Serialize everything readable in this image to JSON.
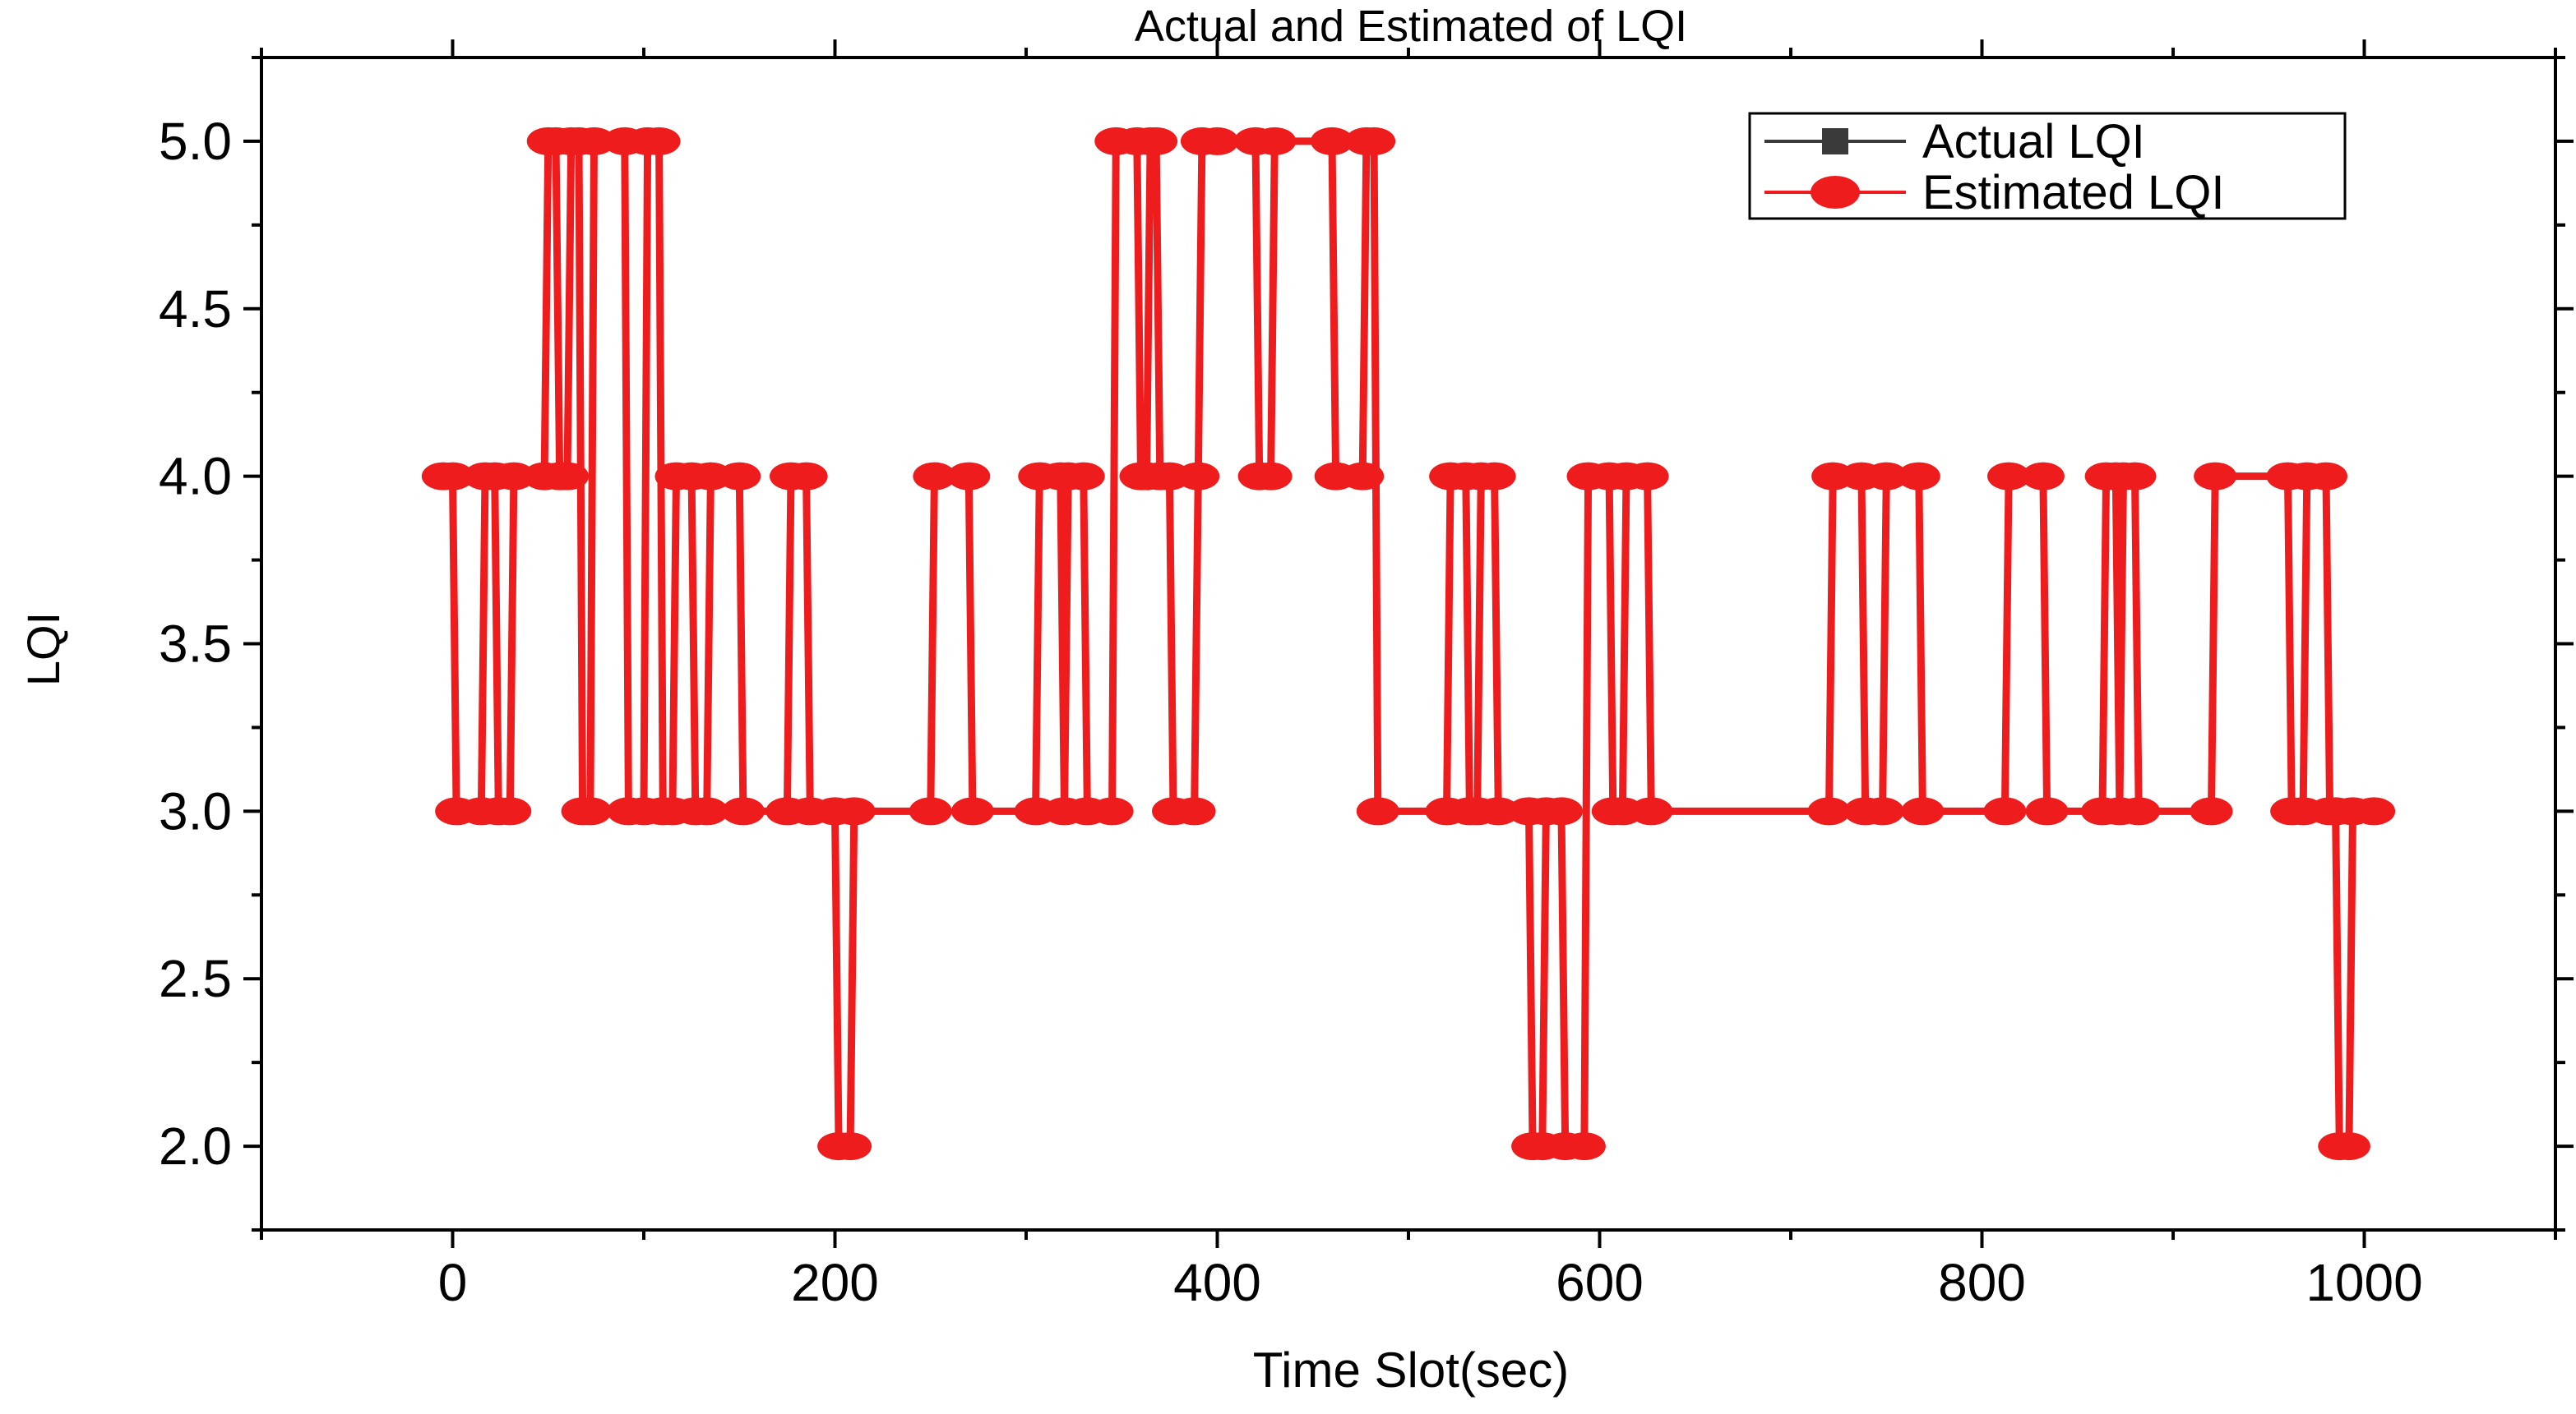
{
  "chart_data": {
    "type": "line",
    "title": "Actual and Estimated of LQI",
    "xlabel": "Time Slot(sec)",
    "ylabel": "LQI",
    "xlim": [
      -100,
      1100
    ],
    "ylim": [
      1.75,
      5.25
    ],
    "xticks": [
      0,
      200,
      400,
      600,
      800,
      1000
    ],
    "xtick_labels": [
      "0",
      "200",
      "400",
      "600",
      "800",
      "1000"
    ],
    "yticks": [
      2.0,
      2.5,
      3.0,
      3.5,
      4.0,
      4.5,
      5.0
    ],
    "ytick_labels": [
      "2.0",
      "2.5",
      "3.0",
      "3.5",
      "4.0",
      "4.5",
      "5.0"
    ],
    "grid": false,
    "legend_position": "top-right",
    "series": [
      {
        "name": "Actual LQI",
        "color": "#3a3a3a",
        "marker": "square",
        "values": [
          [
            -5,
            4
          ],
          [
            0,
            4
          ],
          [
            2,
            3
          ],
          [
            15,
            3
          ],
          [
            17,
            4
          ],
          [
            22,
            4
          ],
          [
            24,
            3
          ],
          [
            30,
            3
          ],
          [
            32,
            4
          ],
          [
            48,
            4
          ],
          [
            50,
            5
          ],
          [
            54,
            5
          ],
          [
            56,
            4
          ],
          [
            60,
            4
          ],
          [
            62,
            5
          ],
          [
            66,
            5
          ],
          [
            68,
            3
          ],
          [
            72,
            3
          ],
          [
            74,
            5
          ],
          [
            90,
            5
          ],
          [
            92,
            3
          ],
          [
            100,
            3
          ],
          [
            102,
            5
          ],
          [
            108,
            5
          ],
          [
            110,
            3
          ],
          [
            115,
            3
          ],
          [
            117,
            4
          ],
          [
            125,
            4
          ],
          [
            127,
            3
          ],
          [
            133,
            3
          ],
          [
            135,
            4
          ],
          [
            150,
            4
          ],
          [
            152,
            3
          ],
          [
            175,
            3
          ],
          [
            177,
            4
          ],
          [
            185,
            4
          ],
          [
            187,
            3
          ],
          [
            200,
            3
          ],
          [
            202,
            2
          ],
          [
            208,
            2
          ],
          [
            210,
            3
          ],
          [
            250,
            3
          ],
          [
            252,
            4
          ],
          [
            270,
            4
          ],
          [
            272,
            3
          ],
          [
            305,
            3
          ],
          [
            307,
            4
          ],
          [
            318,
            4
          ],
          [
            320,
            3
          ],
          [
            322,
            4
          ],
          [
            330,
            4
          ],
          [
            332,
            3
          ],
          [
            345,
            3
          ],
          [
            347,
            5
          ],
          [
            358,
            5
          ],
          [
            360,
            4
          ],
          [
            363,
            4
          ],
          [
            365,
            5
          ],
          [
            368,
            5
          ],
          [
            370,
            4
          ],
          [
            375,
            4
          ],
          [
            377,
            3
          ],
          [
            388,
            3
          ],
          [
            390,
            4
          ],
          [
            392,
            5
          ],
          [
            400,
            5
          ],
          [
            420,
            5
          ],
          [
            422,
            4
          ],
          [
            428,
            4
          ],
          [
            430,
            5
          ],
          [
            460,
            5
          ],
          [
            462,
            4
          ],
          [
            476,
            4
          ],
          [
            478,
            5
          ],
          [
            482,
            5
          ],
          [
            484,
            3
          ],
          [
            520,
            3
          ],
          [
            522,
            4
          ],
          [
            530,
            4
          ],
          [
            532,
            3
          ],
          [
            536,
            3
          ],
          [
            538,
            4
          ],
          [
            545,
            4
          ],
          [
            547,
            3
          ],
          [
            563,
            3
          ],
          [
            565,
            2
          ],
          [
            570,
            2
          ],
          [
            572,
            3
          ],
          [
            580,
            3
          ],
          [
            582,
            2
          ],
          [
            592,
            2
          ],
          [
            594,
            4
          ],
          [
            605,
            4
          ],
          [
            607,
            3
          ],
          [
            612,
            3
          ],
          [
            614,
            4
          ],
          [
            625,
            4
          ],
          [
            627,
            3
          ],
          [
            720,
            3
          ],
          [
            722,
            4
          ],
          [
            737,
            4
          ],
          [
            739,
            3
          ],
          [
            748,
            3
          ],
          [
            750,
            4
          ],
          [
            767,
            4
          ],
          [
            769,
            3
          ],
          [
            812,
            3
          ],
          [
            814,
            4
          ],
          [
            832,
            4
          ],
          [
            834,
            3
          ],
          [
            863,
            3
          ],
          [
            865,
            4
          ],
          [
            870,
            4
          ],
          [
            872,
            3
          ],
          [
            874,
            4
          ],
          [
            880,
            4
          ],
          [
            882,
            3
          ],
          [
            920,
            3
          ],
          [
            922,
            4
          ],
          [
            960,
            4
          ],
          [
            962,
            3
          ],
          [
            968,
            3
          ],
          [
            970,
            4
          ],
          [
            980,
            4
          ],
          [
            982,
            3
          ],
          [
            985,
            3
          ],
          [
            987,
            2
          ],
          [
            992,
            2
          ],
          [
            994,
            3
          ],
          [
            1005,
            3
          ]
        ]
      },
      {
        "name": "Estimated LQI",
        "color": "#ee1c1c",
        "marker": "circle",
        "values": [
          [
            -5,
            4
          ],
          [
            0,
            4
          ],
          [
            2,
            3
          ],
          [
            15,
            3
          ],
          [
            17,
            4
          ],
          [
            22,
            4
          ],
          [
            24,
            3
          ],
          [
            30,
            3
          ],
          [
            32,
            4
          ],
          [
            48,
            4
          ],
          [
            50,
            5
          ],
          [
            54,
            5
          ],
          [
            56,
            4
          ],
          [
            60,
            4
          ],
          [
            62,
            5
          ],
          [
            66,
            5
          ],
          [
            68,
            3
          ],
          [
            72,
            3
          ],
          [
            74,
            5
          ],
          [
            90,
            5
          ],
          [
            92,
            3
          ],
          [
            100,
            3
          ],
          [
            102,
            5
          ],
          [
            108,
            5
          ],
          [
            110,
            3
          ],
          [
            115,
            3
          ],
          [
            117,
            4
          ],
          [
            125,
            4
          ],
          [
            127,
            3
          ],
          [
            133,
            3
          ],
          [
            135,
            4
          ],
          [
            150,
            4
          ],
          [
            152,
            3
          ],
          [
            175,
            3
          ],
          [
            177,
            4
          ],
          [
            185,
            4
          ],
          [
            187,
            3
          ],
          [
            200,
            3
          ],
          [
            202,
            2
          ],
          [
            208,
            2
          ],
          [
            210,
            3
          ],
          [
            250,
            3
          ],
          [
            252,
            4
          ],
          [
            270,
            4
          ],
          [
            272,
            3
          ],
          [
            305,
            3
          ],
          [
            307,
            4
          ],
          [
            318,
            4
          ],
          [
            320,
            3
          ],
          [
            322,
            4
          ],
          [
            330,
            4
          ],
          [
            332,
            3
          ],
          [
            345,
            3
          ],
          [
            347,
            5
          ],
          [
            358,
            5
          ],
          [
            360,
            4
          ],
          [
            363,
            4
          ],
          [
            365,
            5
          ],
          [
            368,
            5
          ],
          [
            370,
            4
          ],
          [
            375,
            4
          ],
          [
            377,
            3
          ],
          [
            388,
            3
          ],
          [
            390,
            4
          ],
          [
            392,
            5
          ],
          [
            400,
            5
          ],
          [
            420,
            5
          ],
          [
            422,
            4
          ],
          [
            428,
            4
          ],
          [
            430,
            5
          ],
          [
            460,
            5
          ],
          [
            462,
            4
          ],
          [
            476,
            4
          ],
          [
            478,
            5
          ],
          [
            482,
            5
          ],
          [
            484,
            3
          ],
          [
            520,
            3
          ],
          [
            522,
            4
          ],
          [
            530,
            4
          ],
          [
            532,
            3
          ],
          [
            536,
            3
          ],
          [
            538,
            4
          ],
          [
            545,
            4
          ],
          [
            547,
            3
          ],
          [
            563,
            3
          ],
          [
            565,
            2
          ],
          [
            570,
            2
          ],
          [
            572,
            3
          ],
          [
            580,
            3
          ],
          [
            582,
            2
          ],
          [
            592,
            2
          ],
          [
            594,
            4
          ],
          [
            605,
            4
          ],
          [
            607,
            3
          ],
          [
            612,
            3
          ],
          [
            614,
            4
          ],
          [
            625,
            4
          ],
          [
            627,
            3
          ],
          [
            720,
            3
          ],
          [
            722,
            4
          ],
          [
            737,
            4
          ],
          [
            739,
            3
          ],
          [
            748,
            3
          ],
          [
            750,
            4
          ],
          [
            767,
            4
          ],
          [
            769,
            3
          ],
          [
            812,
            3
          ],
          [
            814,
            4
          ],
          [
            832,
            4
          ],
          [
            834,
            3
          ],
          [
            863,
            3
          ],
          [
            865,
            4
          ],
          [
            870,
            4
          ],
          [
            872,
            3
          ],
          [
            874,
            4
          ],
          [
            880,
            4
          ],
          [
            882,
            3
          ],
          [
            920,
            3
          ],
          [
            922,
            4
          ],
          [
            960,
            4
          ],
          [
            962,
            3
          ],
          [
            968,
            3
          ],
          [
            970,
            4
          ],
          [
            980,
            4
          ],
          [
            982,
            3
          ],
          [
            985,
            3
          ],
          [
            987,
            2
          ],
          [
            992,
            2
          ],
          [
            994,
            3
          ],
          [
            1005,
            3
          ]
        ]
      }
    ]
  }
}
